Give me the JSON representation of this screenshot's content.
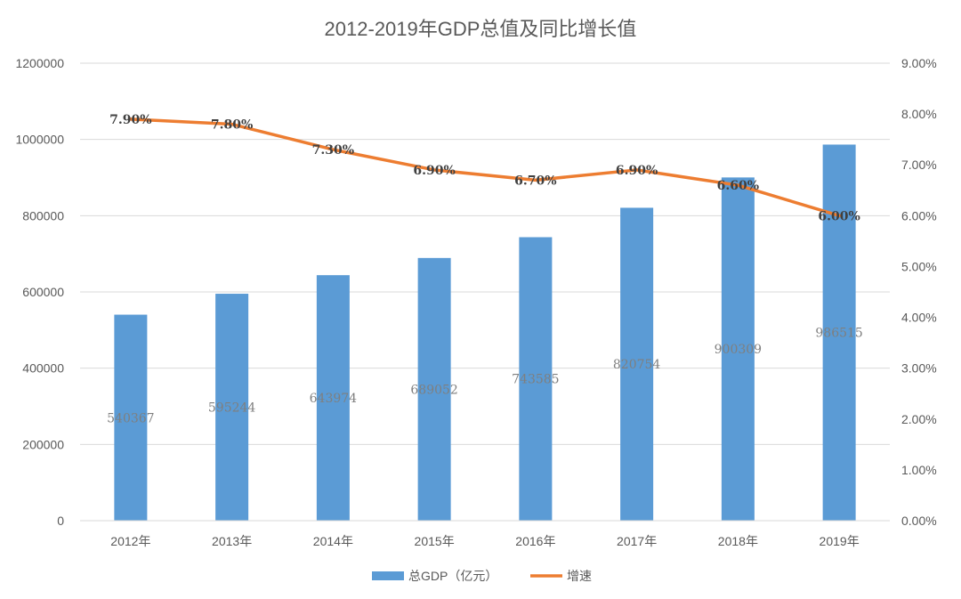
{
  "chart_data": {
    "type": "bar",
    "title": "2012-2019年GDP总值及同比增长值",
    "categories": [
      "2012年",
      "2013年",
      "2014年",
      "2015年",
      "2016年",
      "2017年",
      "2018年",
      "2019年"
    ],
    "series": [
      {
        "name": "总GDP（亿元）",
        "type": "bar",
        "axis": "left",
        "color": "#5b9bd5",
        "values": [
          540367,
          595244,
          643974,
          689052,
          743585,
          820754,
          900309,
          986515
        ],
        "labels": [
          "540367",
          "595244",
          "643974",
          "689052",
          "743585",
          "820754",
          "900309",
          "986515"
        ]
      },
      {
        "name": "增速",
        "type": "line",
        "axis": "right",
        "color": "#ed7d31",
        "values": [
          7.9,
          7.8,
          7.3,
          6.9,
          6.7,
          6.9,
          6.6,
          6.0
        ],
        "labels": [
          "7.90%",
          "7.80%",
          "7.30%",
          "6.90%",
          "6.70%",
          "6.90%",
          "6.60%",
          "6.00%"
        ]
      }
    ],
    "y_left": {
      "min": 0,
      "max": 1200000,
      "ticks": [
        "0",
        "200000",
        "400000",
        "600000",
        "800000",
        "1000000",
        "1200000"
      ]
    },
    "y_right": {
      "min": 0,
      "max": 9,
      "ticks": [
        "0.00%",
        "1.00%",
        "2.00%",
        "3.00%",
        "4.00%",
        "5.00%",
        "6.00%",
        "7.00%",
        "8.00%",
        "9.00%"
      ]
    },
    "grid": true,
    "legend_position": "bottom"
  }
}
